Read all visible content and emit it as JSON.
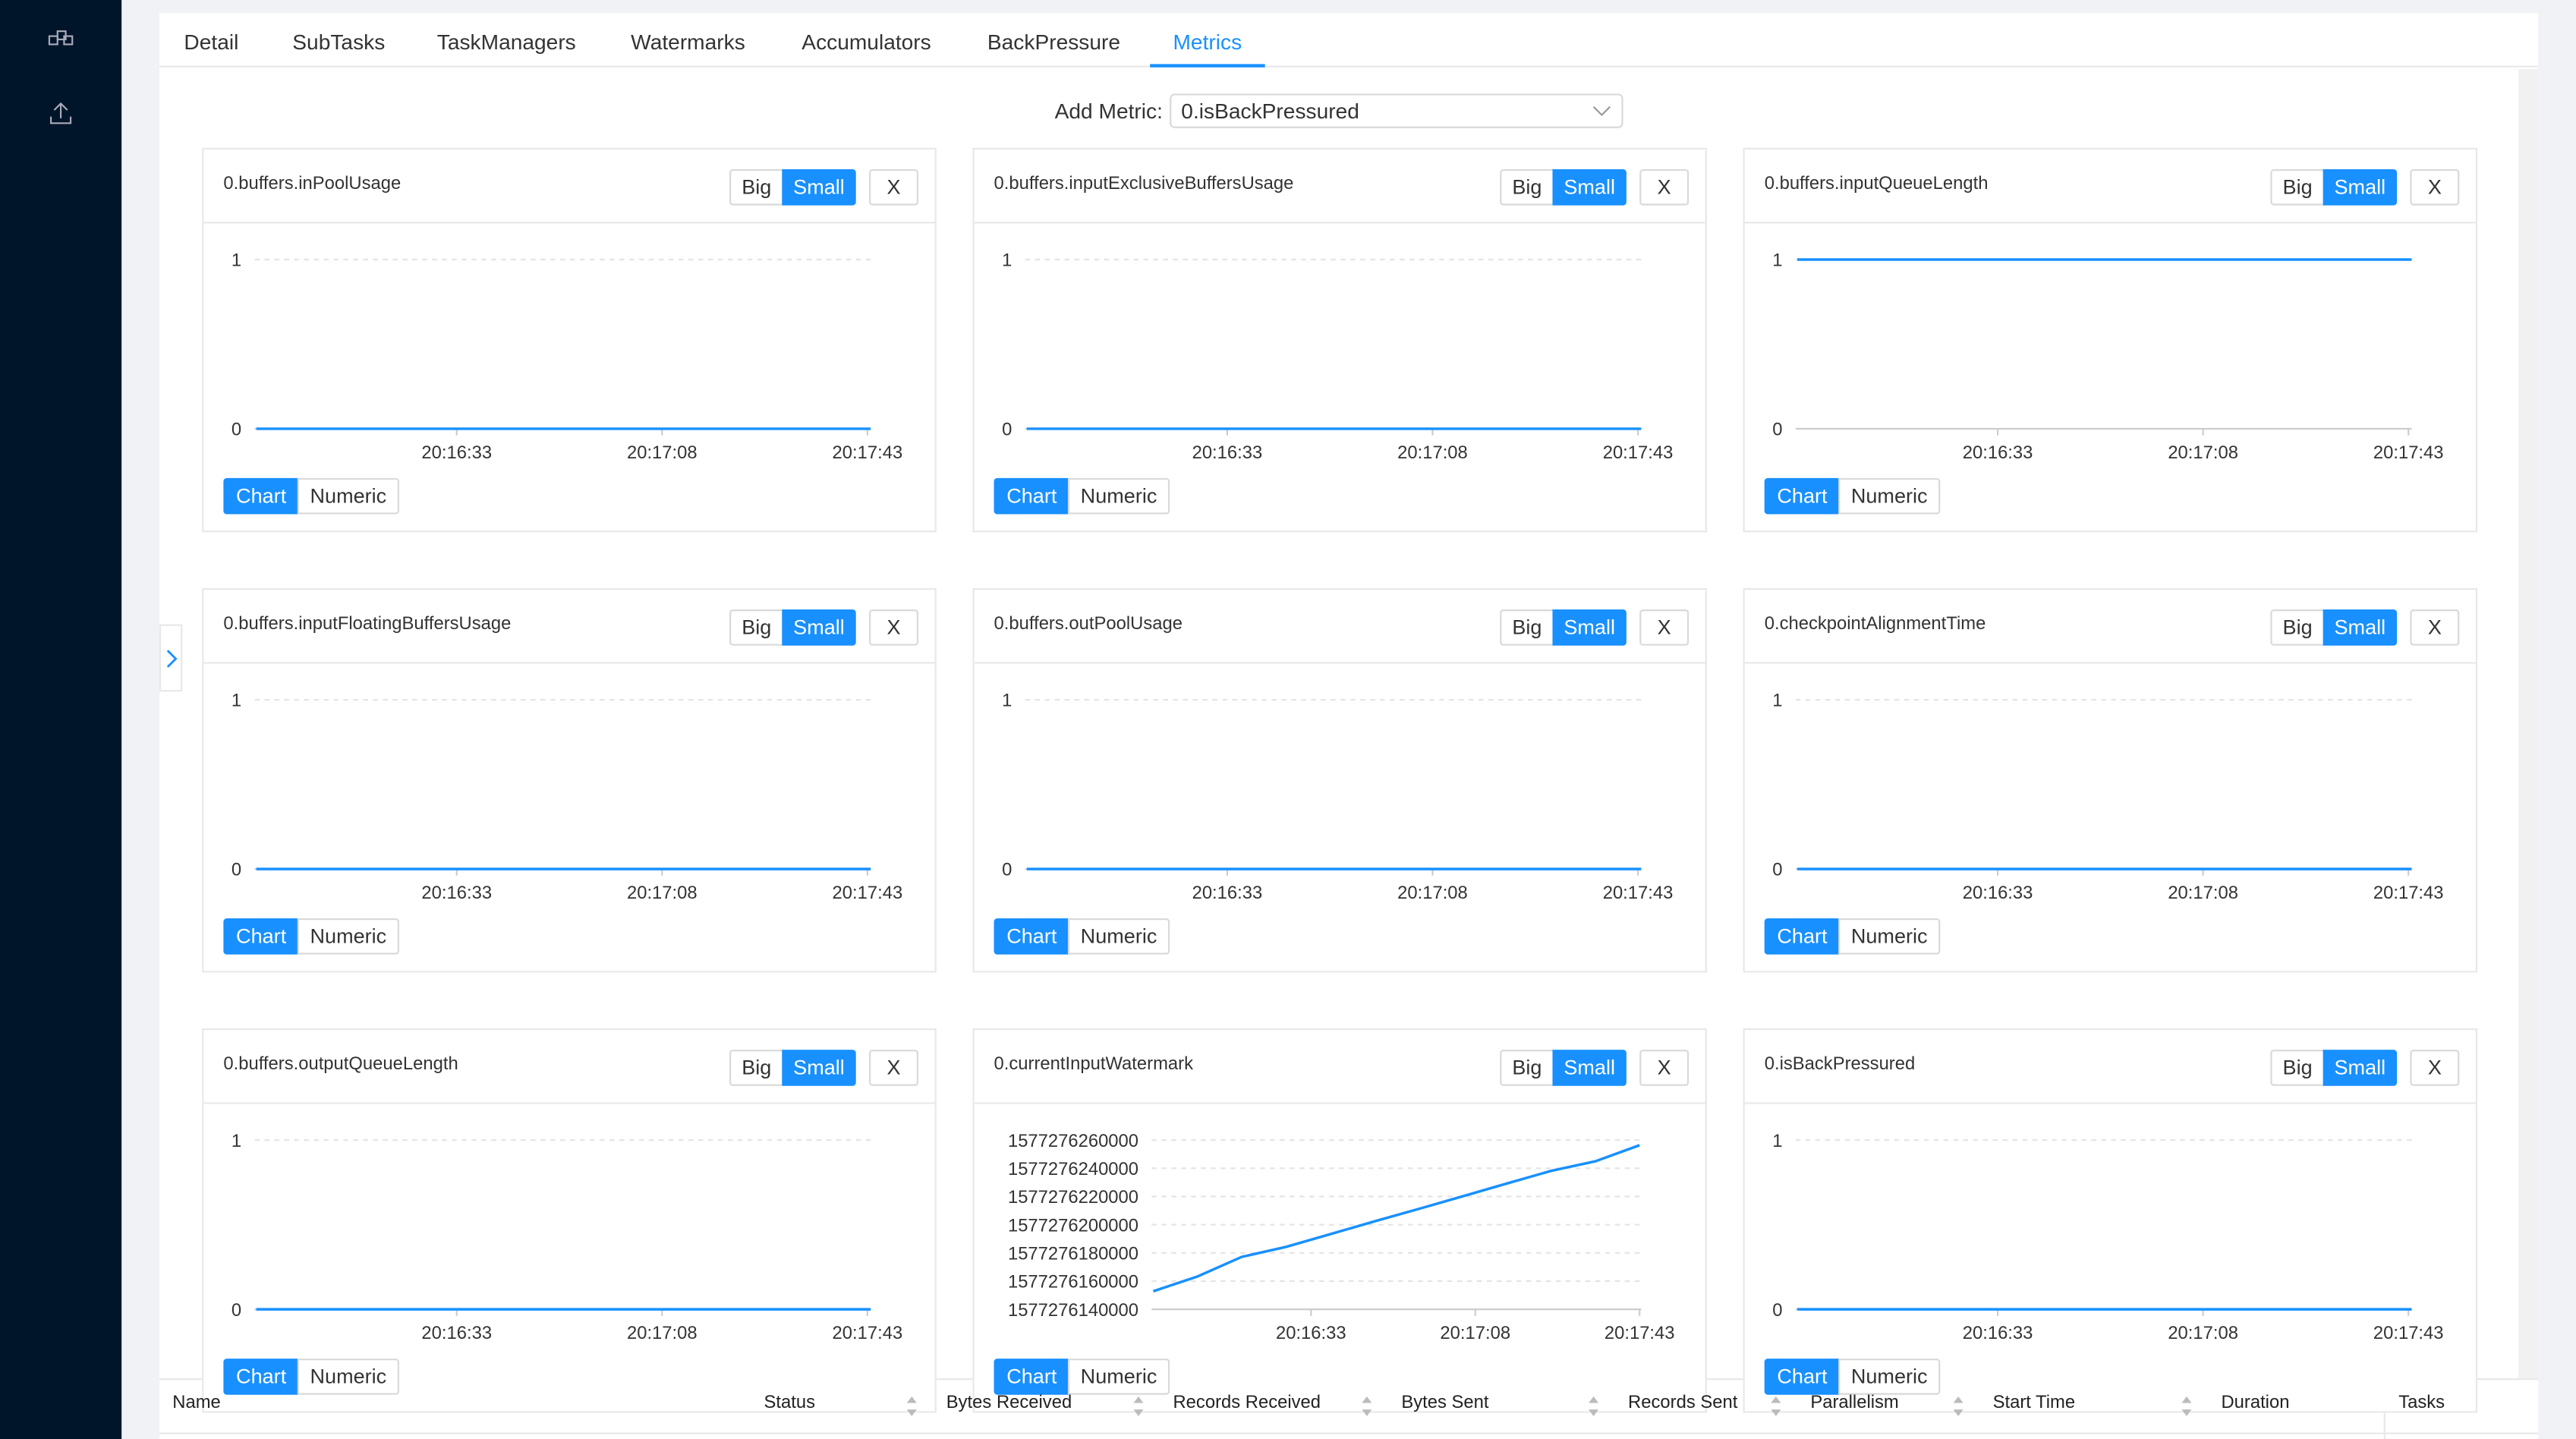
{
  "tabs": [
    "Detail",
    "SubTasks",
    "TaskManagers",
    "Watermarks",
    "Accumulators",
    "BackPressure",
    "Metrics"
  ],
  "active_tab": 6,
  "add_metric": {
    "label": "Add Metric:",
    "value": "0.isBackPressured"
  },
  "panel_buttons": {
    "big": "Big",
    "small": "Small",
    "close": "X",
    "chart": "Chart",
    "numeric": "Numeric"
  },
  "panels": [
    {
      "title": "0.buffers.inPoolUsage",
      "ylim": [
        0,
        1
      ],
      "yticks": [
        0,
        1
      ],
      "xticks": [
        "20:16:33",
        "20:17:08",
        "20:17:43"
      ],
      "values": [
        0,
        0,
        0,
        0,
        0,
        0
      ]
    },
    {
      "title": "0.buffers.inputExclusiveBuffersUsage",
      "ylim": [
        0,
        1
      ],
      "yticks": [
        0,
        1
      ],
      "xticks": [
        "20:16:33",
        "20:17:08",
        "20:17:43"
      ],
      "values": [
        0,
        0,
        0,
        0,
        0,
        0
      ]
    },
    {
      "title": "0.buffers.inputQueueLength",
      "ylim": [
        0,
        1
      ],
      "yticks": [
        0,
        1
      ],
      "xticks": [
        "20:16:33",
        "20:17:08",
        "20:17:43"
      ],
      "values": [
        1,
        1,
        1,
        1,
        1,
        1
      ]
    },
    {
      "title": "0.buffers.inputFloatingBuffersUsage",
      "ylim": [
        0,
        1
      ],
      "yticks": [
        0,
        1
      ],
      "xticks": [
        "20:16:33",
        "20:17:08",
        "20:17:43"
      ],
      "values": [
        0,
        0,
        0,
        0,
        0,
        0
      ]
    },
    {
      "title": "0.buffers.outPoolUsage",
      "ylim": [
        0,
        1
      ],
      "yticks": [
        0,
        1
      ],
      "xticks": [
        "20:16:33",
        "20:17:08",
        "20:17:43"
      ],
      "values": [
        0,
        0,
        0,
        0,
        0,
        0
      ]
    },
    {
      "title": "0.checkpointAlignmentTime",
      "ylim": [
        0,
        1
      ],
      "yticks": [
        0,
        1
      ],
      "xticks": [
        "20:16:33",
        "20:17:08",
        "20:17:43"
      ],
      "values": [
        0,
        0,
        0,
        0,
        0,
        0
      ]
    },
    {
      "title": "0.buffers.outputQueueLength",
      "ylim": [
        0,
        1
      ],
      "yticks": [
        0,
        1
      ],
      "xticks": [
        "20:16:33",
        "20:17:08",
        "20:17:43"
      ],
      "values": [
        0,
        0,
        0,
        0,
        0,
        0
      ]
    },
    {
      "title": "0.currentInputWatermark",
      "ylim": [
        1577276140000,
        1577276260000
      ],
      "yticks": [
        1577276140000,
        1577276160000,
        1577276180000,
        1577276200000,
        1577276220000,
        1577276240000,
        1577276260000
      ],
      "xticks": [
        "20:16:33",
        "20:17:08",
        "20:17:43"
      ],
      "values": [
        1577276152800,
        1577276163300,
        1577276177200,
        1577276184300,
        1577276193300,
        1577276202300,
        1577276211200,
        1577276220200,
        1577276229200,
        1577276238200,
        1577276245000,
        1577276256400
      ]
    },
    {
      "title": "0.isBackPressured",
      "ylim": [
        0,
        1
      ],
      "yticks": [
        0,
        1
      ],
      "xticks": [
        "20:16:33",
        "20:17:08",
        "20:17:43"
      ],
      "values": [
        0,
        0,
        0,
        0,
        0,
        0
      ]
    }
  ],
  "table_columns": [
    "Name",
    "Status",
    "Bytes Received",
    "Records Received",
    "Bytes Sent",
    "Records Sent",
    "Parallelism",
    "Start Time",
    "Duration",
    "Tasks"
  ]
}
